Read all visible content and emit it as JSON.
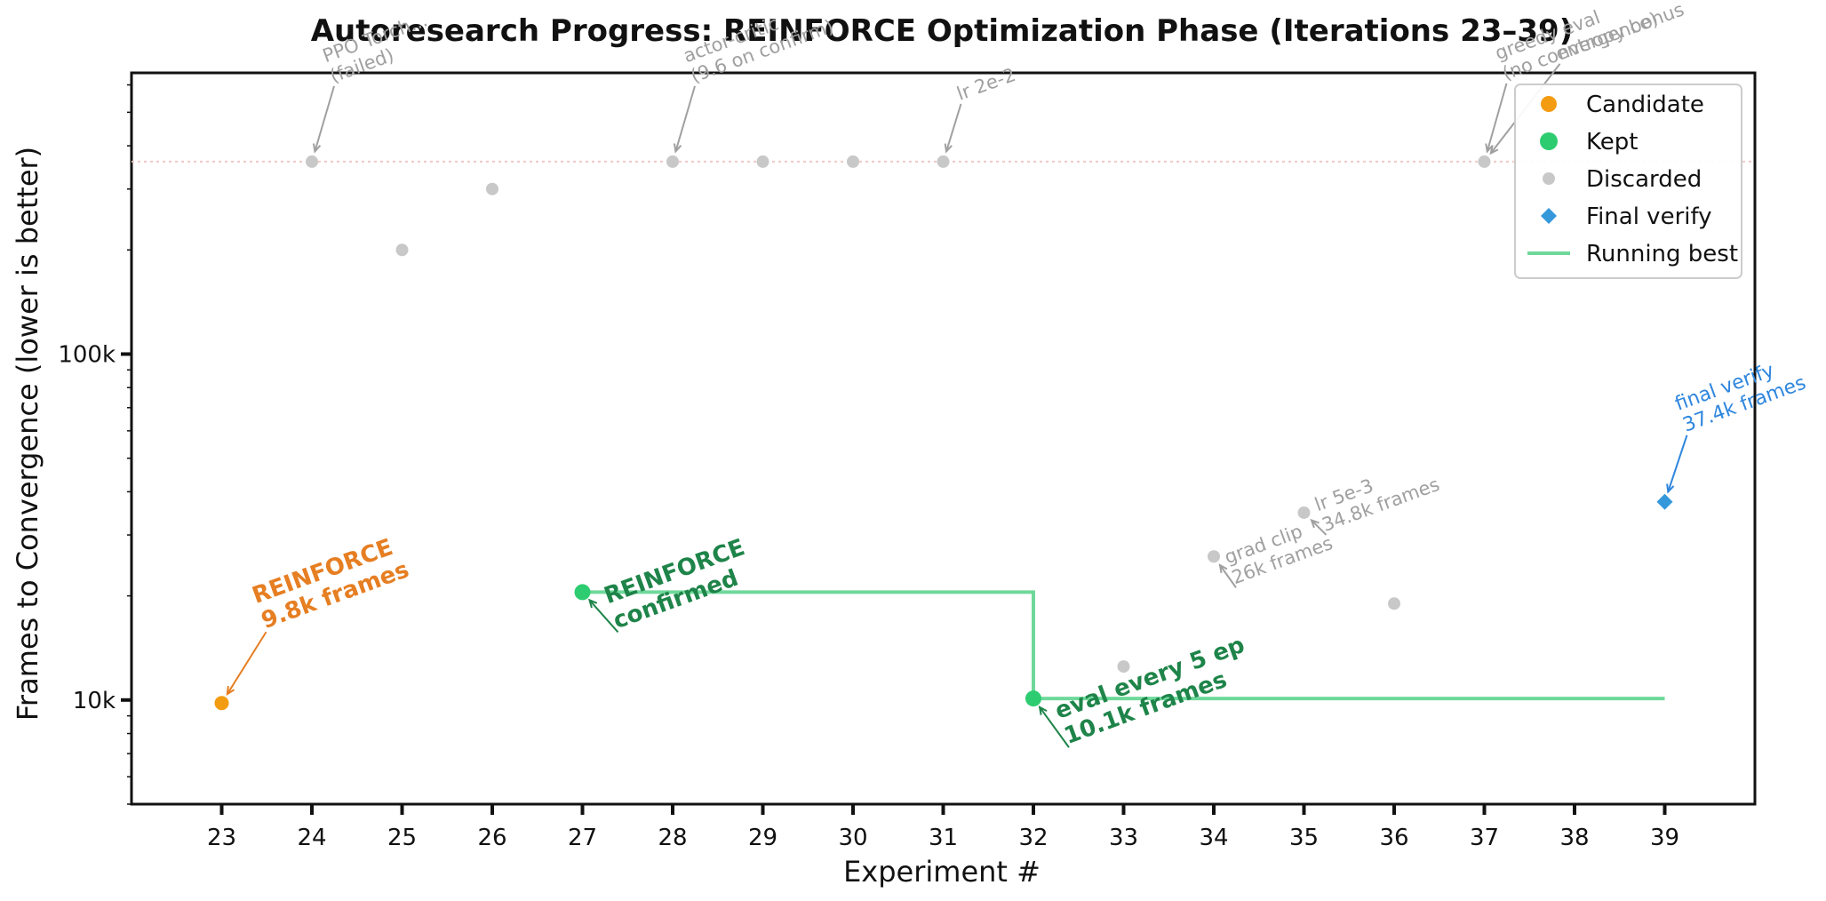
{
  "chart_data": {
    "type": "scatter",
    "title": "Autoresearch Progress: REINFORCE Optimization Phase (Iterations 23–39)",
    "xlabel": "Experiment #",
    "ylabel": "Frames to Convergence (lower is better)",
    "x_ticks": [
      23,
      24,
      25,
      26,
      27,
      28,
      29,
      30,
      31,
      32,
      33,
      34,
      35,
      36,
      37,
      38,
      39
    ],
    "y_scale": "log",
    "y_ticks": [
      10000,
      100000
    ],
    "y_tick_labels": [
      "10k",
      "100k"
    ],
    "xlim": [
      22,
      40
    ],
    "ylim": [
      5000,
      650000
    ],
    "grid": false,
    "legend_position": "top-right",
    "legend": [
      "Candidate",
      "Kept",
      "Discarded",
      "Final verify",
      "Running best"
    ],
    "colors": {
      "candidate": "#f39c12",
      "kept": "#2ecc71",
      "discarded": "#c8c8c8",
      "final": "#3498db",
      "running_best": "#6ed89a",
      "annot_candidate": "#e67e22",
      "annot_kept": "#1e8449",
      "annot_discarded": "#a0a0a0",
      "annot_final": "#2e86de",
      "cap_line": "#f0c8c8"
    },
    "cap_value": 360000,
    "series": [
      {
        "name": "Candidate",
        "points": [
          {
            "x": 23,
            "y": 9800
          }
        ]
      },
      {
        "name": "Kept",
        "points": [
          {
            "x": 27,
            "y": 20500
          },
          {
            "x": 32,
            "y": 10100
          }
        ]
      },
      {
        "name": "Discarded",
        "points": [
          {
            "x": 24,
            "y": 360000
          },
          {
            "x": 25,
            "y": 200000
          },
          {
            "x": 26,
            "y": 300000
          },
          {
            "x": 28,
            "y": 360000
          },
          {
            "x": 29,
            "y": 360000
          },
          {
            "x": 30,
            "y": 360000
          },
          {
            "x": 31,
            "y": 360000
          },
          {
            "x": 33,
            "y": 12500
          },
          {
            "x": 34,
            "y": 26000
          },
          {
            "x": 35,
            "y": 34800
          },
          {
            "x": 36,
            "y": 19000
          },
          {
            "x": 37,
            "y": 360000
          }
        ]
      },
      {
        "name": "Final verify",
        "points": [
          {
            "x": 39,
            "y": 37400
          }
        ]
      },
      {
        "name": "Running best",
        "steps": [
          {
            "x": 27,
            "y": 20500
          },
          {
            "x": 32,
            "y": 20500
          },
          {
            "x": 32,
            "y": 10100
          },
          {
            "x": 39,
            "y": 10100
          }
        ]
      }
    ],
    "annotations": [
      {
        "kind": "candidate",
        "x": 23,
        "y": 9800,
        "lines": [
          "REINFORCE",
          "9.8k frames"
        ]
      },
      {
        "kind": "kept",
        "x": 27,
        "y": 20500,
        "lines": [
          "REINFORCE",
          "confirmed"
        ]
      },
      {
        "kind": "kept",
        "x": 32,
        "y": 10100,
        "lines": [
          "eval every 5 ep",
          "10.1k frames"
        ]
      },
      {
        "kind": "final",
        "x": 39,
        "y": 37400,
        "lines": [
          "final verify",
          "37.4k frames"
        ]
      },
      {
        "kind": "discarded",
        "x": 24,
        "y": 360000,
        "lines": [
          "PPO Torch...",
          "(failed)"
        ]
      },
      {
        "kind": "discarded",
        "x": 28,
        "y": 360000,
        "lines": [
          "actor-critic",
          "(9.6 on confirm)"
        ]
      },
      {
        "kind": "discarded",
        "x": 31,
        "y": 360000,
        "lines": [
          "lr 2e-2"
        ]
      },
      {
        "kind": "discarded",
        "x": 37,
        "y": 360000,
        "lines": [
          "greedy eval",
          "(no convergence)"
        ]
      },
      {
        "kind": "discarded",
        "x": 37,
        "y": 360000,
        "lines": [
          "entropy bonus"
        ]
      },
      {
        "kind": "discarded",
        "x": 34,
        "y": 26000,
        "lines": [
          "grad clip",
          "26k frames"
        ]
      },
      {
        "kind": "discarded",
        "x": 35,
        "y": 34800,
        "lines": [
          "lr 5e-3",
          "34.8k frames"
        ]
      }
    ]
  }
}
